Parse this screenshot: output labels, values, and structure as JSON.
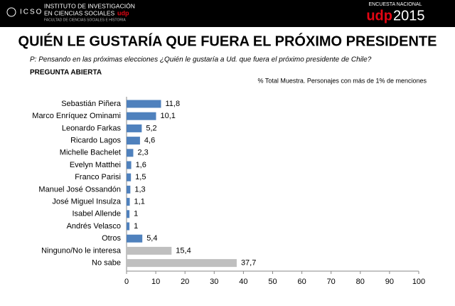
{
  "header": {
    "logo": "ICSO",
    "org_line1": "INSTITUTO DE INVESTIGACIÓN",
    "org_line2": "EN CIENCIAS SOCIALES",
    "org_brand": "udp",
    "faculty": "FACULTAD DE CIENCIAS SOCIALES E HISTORIA",
    "survey": "ENCUESTA NACIONAL",
    "brand": "udp",
    "year": "2015"
  },
  "chart_data": {
    "type": "bar",
    "orientation": "horizontal",
    "title": "QUIÉN LE GUSTARÍA QUE FUERA EL PRÓXIMO PRESIDENTE",
    "subtitle": "P: Pensando en las próximas elecciones ¿Quién le gustaría a  Ud. que fuera  el próximo presidente de Chile?",
    "question_type": "PREGUNTA ABIERTA",
    "note": "% Total Muestra. Personajes con más de 1% de menciones",
    "categories": [
      "Sebastián Piñera",
      "Marco Enríquez Ominami",
      "Leonardo Farkas",
      "Ricardo Lagos",
      "Michelle Bachelet",
      "Evelyn Matthei",
      "Franco Parisi",
      "Manuel José Ossandón",
      "José Miguel Insulza",
      "Isabel Allende",
      "Andrés Velasco",
      "Otros",
      "Ninguno/No le interesa",
      "No sabe"
    ],
    "values": [
      11.8,
      10.1,
      5.2,
      4.6,
      2.3,
      1.6,
      1.5,
      1.3,
      1.1,
      1,
      1,
      5.4,
      15.4,
      37.7
    ],
    "value_labels": [
      "11,8",
      "10,1",
      "5,2",
      "4,6",
      "2,3",
      "1,6",
      "1,5",
      "1,3",
      "1,1",
      "1",
      "1",
      "5,4",
      "15,4",
      "37,7"
    ],
    "colors": [
      "#4f81bd",
      "#4f81bd",
      "#4f81bd",
      "#4f81bd",
      "#4f81bd",
      "#4f81bd",
      "#4f81bd",
      "#4f81bd",
      "#4f81bd",
      "#4f81bd",
      "#4f81bd",
      "#4f81bd",
      "#bfbfbf",
      "#bfbfbf"
    ],
    "xlim": [
      0,
      100
    ],
    "xticks": [
      0,
      10,
      20,
      30,
      40,
      50,
      60,
      70,
      80,
      90,
      100
    ],
    "grid": false
  }
}
